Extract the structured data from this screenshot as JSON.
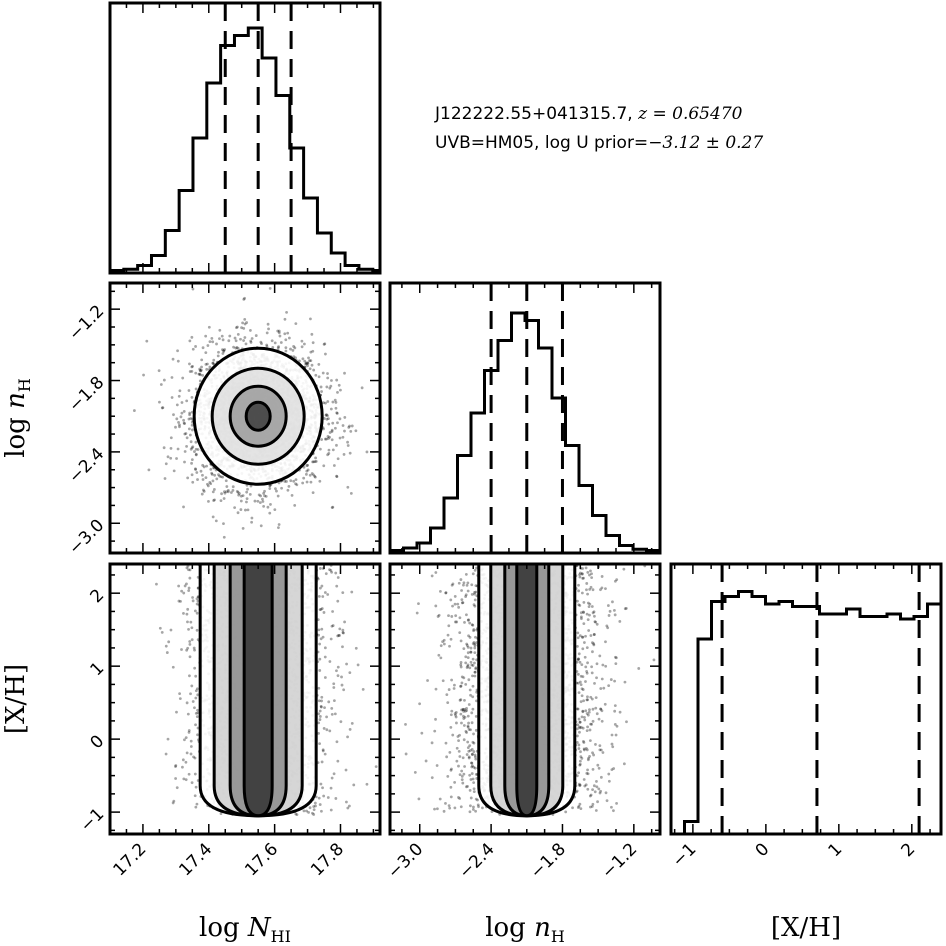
{
  "annotation": {
    "object": "J122222.55+041315.7,",
    "z_label": "z",
    "z_value": " = 0.65470",
    "uvb": "UVB=HM05, log U prior=",
    "prior_value": "−3.12 ± 0.27"
  },
  "chart_data": {
    "type": "corner",
    "parameters": [
      {
        "key": "NHI",
        "label": "log N",
        "sub": "HI",
        "range": [
          17.1,
          17.92
        ],
        "ticks": [
          17.2,
          17.4,
          17.6,
          17.8
        ],
        "tick_labels": [
          "17.2",
          "17.4",
          "17.6",
          "17.8"
        ],
        "quantiles": [
          17.45,
          17.55,
          17.65
        ]
      },
      {
        "key": "nH",
        "label": "log n",
        "sub": "H",
        "range": [
          -3.25,
          -0.98
        ],
        "ticks": [
          -3.0,
          -2.4,
          -1.8,
          -1.2
        ],
        "tick_labels": [
          "−3.0",
          "−2.4",
          "−1.8",
          "−1.2"
        ],
        "quantiles": [
          -2.4,
          -2.1,
          -1.8
        ]
      },
      {
        "key": "XH",
        "label": "[X/H]",
        "sub": "",
        "range": [
          -1.3,
          2.4
        ],
        "ticks": [
          -1,
          0,
          1,
          2
        ],
        "tick_labels": [
          "−1",
          "0",
          "1",
          "2"
        ],
        "quantiles": [
          -0.6,
          0.7,
          2.1
        ]
      }
    ],
    "hist": {
      "NHI": {
        "edges": [
          17.1,
          17.94
        ],
        "counts": [
          0.01,
          0.015,
          0.03,
          0.07,
          0.17,
          0.33,
          0.54,
          0.76,
          0.91,
          0.95,
          0.98,
          0.86,
          0.71,
          0.5,
          0.3,
          0.16,
          0.08,
          0.03,
          0.015,
          0.01
        ]
      },
      "nH": {
        "edges": [
          -3.25,
          -0.98
        ],
        "counts": [
          0.01,
          0.02,
          0.04,
          0.1,
          0.22,
          0.39,
          0.56,
          0.73,
          0.85,
          0.96,
          0.93,
          0.82,
          0.62,
          0.43,
          0.27,
          0.15,
          0.07,
          0.03,
          0.015,
          0.01
        ]
      },
      "XH": {
        "edges": [
          -1.3,
          2.4
        ],
        "counts": [
          0.0,
          0.05,
          0.78,
          0.93,
          0.95,
          0.97,
          0.95,
          0.92,
          0.93,
          0.91,
          0.91,
          0.88,
          0.88,
          0.9,
          0.87,
          0.87,
          0.88,
          0.86,
          0.87,
          0.92
        ]
      }
    },
    "show_scatter": true,
    "show_contours": true,
    "ylabel_text": "[X/H]"
  }
}
